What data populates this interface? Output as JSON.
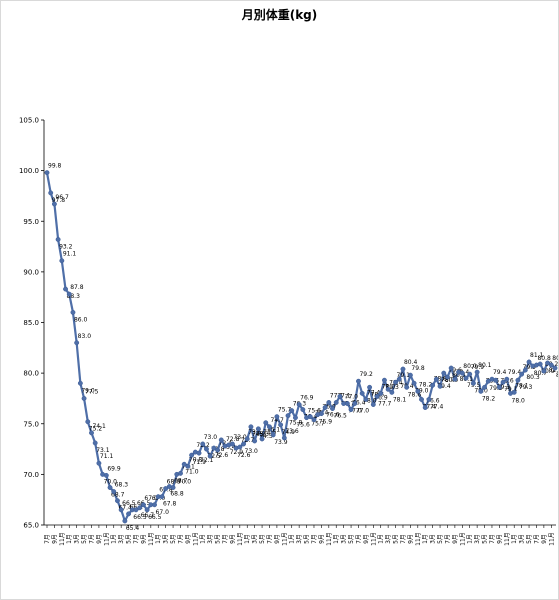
{
  "chart_data": {
    "type": "line",
    "title": "月別体重(kg)",
    "xlabel": "",
    "ylabel": "",
    "ylim": [
      65.0,
      105.0
    ],
    "yticks": [
      "65.0",
      "70.0",
      "75.0",
      "80.0",
      "85.0",
      "90.0",
      "95.0",
      "100.0",
      "105.0"
    ],
    "grid": false,
    "legend": "none",
    "series": [
      {
        "name": "",
        "color": "#4f6fa8",
        "marker": "circle",
        "values": [
          99.8,
          97.8,
          96.7,
          93.2,
          91.1,
          88.3,
          87.8,
          86.0,
          83.0,
          79.0,
          77.5,
          75.2,
          74.1,
          73.1,
          71.1,
          70.0,
          69.9,
          68.7,
          68.3,
          67.4,
          66.5,
          65.4,
          66.1,
          66.5,
          66.5,
          66.7,
          67.0,
          66.5,
          67.0,
          67.0,
          67.8,
          67.8,
          68.6,
          68.8,
          68.7,
          70.0,
          70.1,
          71.0,
          70.8,
          71.9,
          72.2,
          72.1,
          73.0,
          72.5,
          71.8,
          72.6,
          72.4,
          73.4,
          72.8,
          72.9,
          73.0,
          72.6,
          72.7,
          73.0,
          73.5,
          74.7,
          73.3,
          74.5,
          73.5,
          75.1,
          74.7,
          73.9,
          75.7,
          74.9,
          73.6,
          75.8,
          76.3,
          75.6,
          76.9,
          76.4,
          75.6,
          75.7,
          75.4,
          75.9,
          76.0,
          76.6,
          77.1,
          76.5,
          77.1,
          77.7,
          77.0,
          77.0,
          76.4,
          77.0,
          79.2,
          78.0,
          77.4,
          78.6,
          76.9,
          77.7,
          78.0,
          79.3,
          78.4,
          78.1,
          79.1,
          79.4,
          80.4,
          78.6,
          79.8,
          79.0,
          78.2,
          77.4,
          76.6,
          77.4,
          78.8,
          79.4,
          78.7,
          80.0,
          79.6,
          80.5,
          79.4,
          80.1,
          80.0,
          79.5,
          79.9,
          79.0,
          80.1,
          78.2,
          78.6,
          79.2,
          79.4,
          79.3,
          78.6,
          79.1,
          79.4,
          78.0,
          78.1,
          79.3,
          79.9,
          80.3,
          81.1,
          80.7,
          80.8,
          80.9,
          80.2,
          81.0,
          80.8,
          80.5
        ]
      }
    ],
    "x_tick_labels": [
      "7月",
      "9月",
      "11月",
      "1月",
      "3月",
      "5月",
      "7月",
      "9月",
      "11月",
      "1月",
      "3月",
      "5月",
      "7月",
      "9月",
      "11月",
      "1月",
      "3月",
      "5月",
      "7月",
      "9月",
      "11月",
      "1月",
      "3月",
      "5月",
      "7月",
      "9月",
      "11月",
      "1月",
      "3月",
      "5月",
      "7月",
      "9月",
      "11月",
      "1月",
      "3月",
      "5月",
      "7月",
      "9月",
      "11月",
      "1月",
      "3月",
      "5月",
      "7月",
      "9月",
      "11月",
      "1月",
      "3月",
      "5月",
      "7月",
      "9月",
      "11月",
      "1月",
      "3月",
      "5月",
      "7月",
      "9月",
      "11月",
      "1月",
      "3月",
      "5月",
      "7月",
      "9月",
      "11月",
      "1月",
      "3月",
      "5月",
      "7月",
      "9月",
      "11月",
      "1月",
      "3月",
      "5月",
      "7月",
      "9月",
      "11月",
      "1月",
      "3月",
      "5月",
      "7月",
      "9月",
      "11月",
      "1月",
      "3月",
      "5月",
      "7月",
      "9月",
      "11月",
      "1月",
      "3月",
      "5月",
      "7月",
      "9月",
      "11月",
      "1月",
      "3月",
      "5月",
      "7月",
      "9月",
      "11月",
      "1月",
      "3月",
      "5月",
      "7月",
      "9月",
      "11月",
      "1月",
      "3月",
      "5月",
      "7月",
      "9月",
      "11月",
      "1月",
      "3月",
      "5月",
      "7月",
      "9月",
      "11月",
      "1月",
      "3月",
      "5月",
      "7月",
      "9月",
      "11月",
      "1月",
      "3月",
      "5月",
      "7月",
      "9月",
      "11月",
      "1月",
      "3月",
      "5月",
      "7月",
      "9月",
      "11月",
      "1月",
      "3月",
      "5月",
      "7月",
      "9月",
      "11月",
      "1月"
    ]
  }
}
